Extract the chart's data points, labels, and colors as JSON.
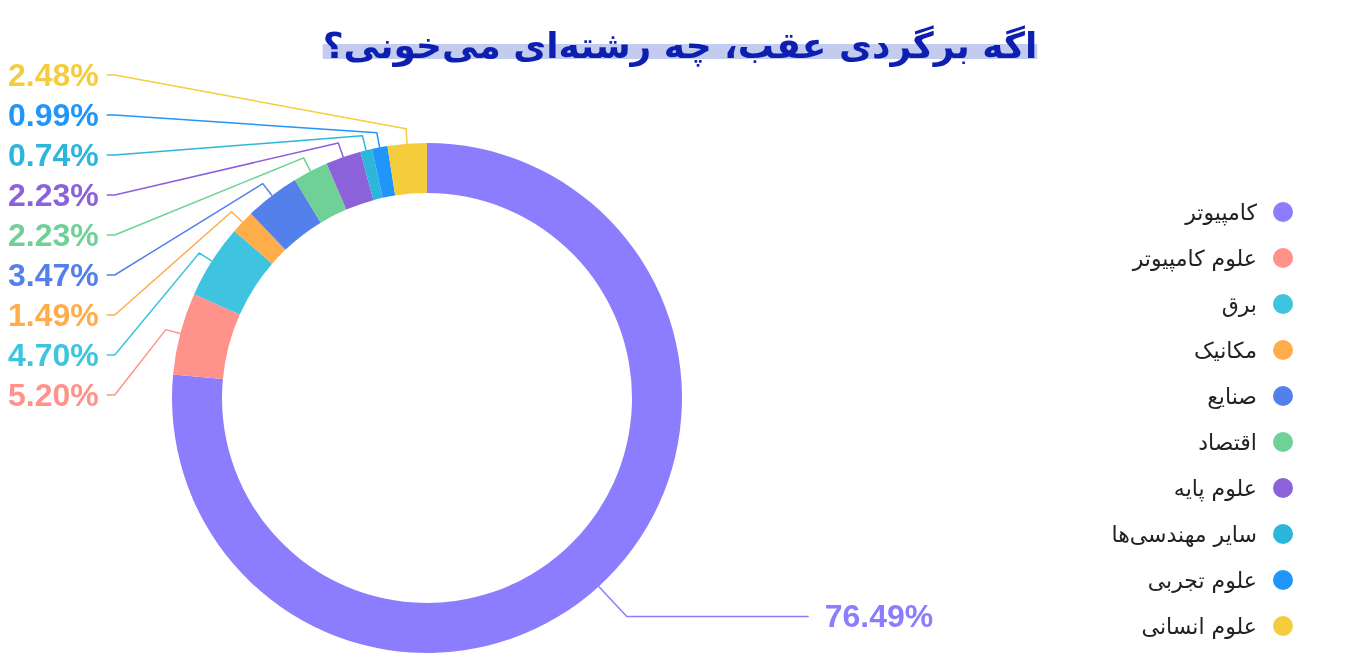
{
  "chart_data": {
    "type": "donut",
    "title": "اگه برگردی عقب، چه رشته‌ای می‌خونی؟",
    "categories": [
      "کامپیوتر",
      "علوم کامپیوتر",
      "برق",
      "مکانیک",
      "صنایع",
      "اقتصاد",
      "علوم پایه",
      "سایر مهندسی‌ها",
      "علوم تجربی",
      "علوم انسانی"
    ],
    "values": [
      76.49,
      5.2,
      4.7,
      1.49,
      3.47,
      2.23,
      2.23,
      0.74,
      0.99,
      2.48
    ],
    "colors": [
      "#8c7dff",
      "#ff938b",
      "#3ec4df",
      "#ffad4b",
      "#5480ec",
      "#6fd196",
      "#8b62d9",
      "#2db6db",
      "#2196fa",
      "#f5cd3c"
    ],
    "value_labels": [
      "76.49%",
      "5.20%",
      "4.70%",
      "1.49%",
      "3.47%",
      "2.23%",
      "2.23%",
      "0.74%",
      "0.99%",
      "2.48%"
    ],
    "legend": "right"
  }
}
